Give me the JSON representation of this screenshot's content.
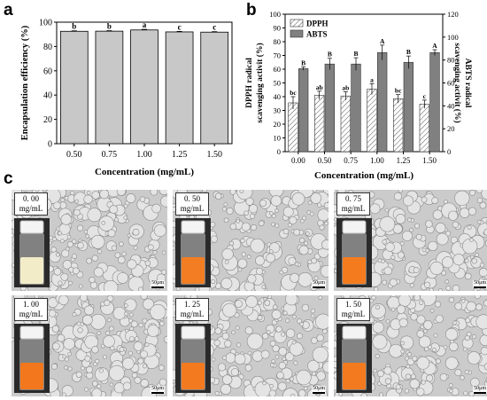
{
  "panels": {
    "a": "a",
    "b": "b",
    "c": "c"
  },
  "chart_data": [
    {
      "type": "bar",
      "panel": "a",
      "categories": [
        "0.50",
        "0.75",
        "1.00",
        "1.25",
        "1.50"
      ],
      "values": [
        92.5,
        92.6,
        93.6,
        92.0,
        91.8
      ],
      "errors": [
        0.4,
        0.4,
        0.5,
        0.4,
        0.4
      ],
      "letters": [
        "b",
        "b",
        "a",
        "c",
        "c"
      ],
      "xlabel": "Concentration (mg/mL)",
      "ylabel": "Encapsulation efficiency (%)",
      "ylim": [
        0,
        100
      ],
      "yticks": [
        "0",
        "20",
        "40",
        "60",
        "80",
        "100"
      ],
      "color": "#c8c8c8"
    },
    {
      "type": "bar",
      "panel": "b",
      "categories": [
        "0.00",
        "0.50",
        "0.75",
        "1.00",
        "1.25",
        "1.50"
      ],
      "series": [
        {
          "name": "DPPH",
          "values": [
            35.5,
            41.0,
            40.5,
            45.5,
            38.5,
            34.5
          ],
          "errors": [
            4.5,
            3.0,
            3.0,
            4.0,
            3.0,
            3.0
          ],
          "letters": [
            "bc",
            "ab",
            "ab",
            "a",
            "bc",
            "c"
          ],
          "axis": "left",
          "pattern": "hatch"
        },
        {
          "name": "ABTS",
          "values": [
            72.5,
            76.5,
            76.5,
            86.5,
            78.0,
            86.5
          ],
          "errors": [
            1.5,
            5.0,
            5.5,
            6.5,
            5.5,
            2.5
          ],
          "letters": [
            "B",
            "B",
            "B",
            "A",
            "B",
            "A"
          ],
          "axis": "right",
          "color": "#808080"
        }
      ],
      "xlabel": "Concentration (mg/mL)",
      "ylabel_left": "DPPH radical scavenging activit (%)",
      "ylabel_left_lines": [
        "DPPH radical",
        "scavenging activit (%)"
      ],
      "ylabel_right": "ABTS radical scavenging activit (%)",
      "ylabel_right_lines": [
        "ABTS radical",
        "scavenging activit (%)"
      ],
      "ylim_left": [
        0,
        100
      ],
      "ylim_right": [
        0,
        120
      ],
      "yticks_left": [
        "0",
        "10",
        "20",
        "30",
        "40",
        "50",
        "60",
        "70",
        "80",
        "90",
        "100"
      ],
      "yticks_right": [
        "0",
        "20",
        "40",
        "60",
        "80",
        "100",
        "120"
      ],
      "legend": "top-left"
    }
  ],
  "emulsions": [
    {
      "label_top": "0. 00",
      "label_bottom": "mg/mL",
      "vial_color": "#f3ecc9",
      "scale": "50μm"
    },
    {
      "label_top": "0. 50",
      "label_bottom": "mg/mL",
      "vial_color": "#f27d22",
      "scale": "50μm"
    },
    {
      "label_top": "0. 75",
      "label_bottom": "mg/mL",
      "vial_color": "#f47c1e",
      "scale": "50μm"
    },
    {
      "label_top": "1. 00",
      "label_bottom": "mg/mL",
      "vial_color": "#f3781d",
      "scale": "50μm"
    },
    {
      "label_top": "1. 25",
      "label_bottom": "mg/mL",
      "vial_color": "#f47a20",
      "scale": "50μm"
    },
    {
      "label_top": "1. 50",
      "label_bottom": "mg/mL",
      "vial_color": "#f37a1f",
      "scale": "50μm"
    }
  ]
}
